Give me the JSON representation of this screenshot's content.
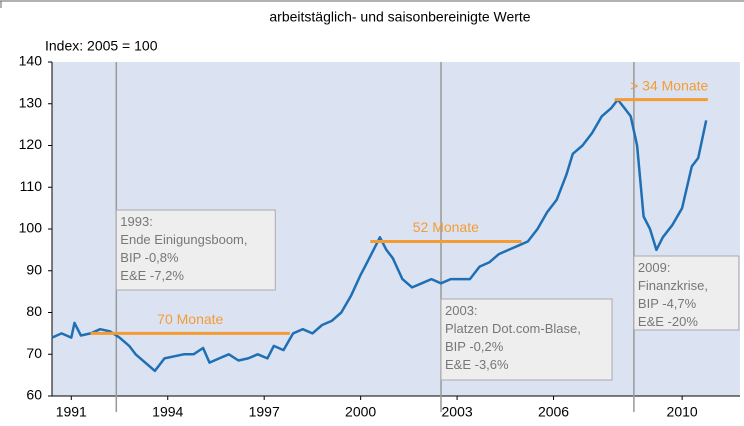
{
  "chart_data": {
    "type": "line",
    "subtitle": "arbeitstäglich- und saisonbereinigte Werte",
    "y_label": "Index: 2005 = 100",
    "xlim": [
      1990.4,
      2011.8
    ],
    "xticks": [
      1991,
      1994,
      1997,
      2000,
      2003,
      2006,
      2010
    ],
    "ylim": [
      60,
      140
    ],
    "yticks": [
      60,
      70,
      80,
      90,
      100,
      110,
      120,
      130,
      140
    ],
    "background": "#dbe3f3",
    "x": [
      1990.4,
      1990.7,
      1991.0,
      1991.1,
      1991.3,
      1991.6,
      1991.9,
      1992.2,
      1992.5,
      1992.8,
      1993.0,
      1993.3,
      1993.6,
      1993.9,
      1994.2,
      1994.5,
      1994.8,
      1995.1,
      1995.3,
      1995.6,
      1995.9,
      1996.2,
      1996.5,
      1996.8,
      1997.1,
      1997.3,
      1997.6,
      1997.9,
      1998.2,
      1998.5,
      1998.8,
      1999.1,
      1999.4,
      1999.7,
      2000.0,
      2000.2,
      2000.4,
      2000.6,
      2000.8,
      2001.0,
      2001.3,
      2001.6,
      2001.9,
      2002.2,
      2002.5,
      2002.8,
      2003.1,
      2003.4,
      2003.7,
      2004.0,
      2004.3,
      2004.6,
      2004.9,
      2005.2,
      2005.5,
      2005.8,
      2006.1,
      2006.4,
      2006.6,
      2006.9,
      2007.2,
      2007.5,
      2007.8,
      2008.0,
      2008.2,
      2008.4,
      2008.6,
      2008.8,
      2009.0,
      2009.2,
      2009.4,
      2009.7,
      2010.0,
      2010.3,
      2010.5,
      2010.75
    ],
    "series": [
      {
        "color": "#1f6fb5",
        "values": [
          74,
          75,
          74,
          77.5,
          74.5,
          75,
          76,
          75.5,
          74,
          72,
          70,
          68,
          66,
          69,
          69.5,
          70,
          70,
          71.5,
          68,
          69,
          70,
          68.5,
          69,
          70,
          69,
          72,
          71,
          75,
          76,
          75,
          77,
          78,
          80,
          84,
          89,
          92,
          95,
          98,
          95,
          93,
          88,
          86,
          87,
          88,
          87,
          88,
          88,
          88,
          91,
          92,
          94,
          95,
          96,
          97,
          100,
          104,
          107,
          113,
          118,
          120,
          123,
          127,
          129,
          131,
          129,
          127,
          120,
          103,
          100,
          95,
          98,
          101,
          105,
          115,
          117,
          126
        ]
      }
    ],
    "periods": [
      {
        "label": "70 Monate",
        "start": 1991.6,
        "end": 1997.8,
        "value": 75
      },
      {
        "label": "52 Monate",
        "start": 2000.3,
        "end": 2005.0,
        "value": 97
      },
      {
        "label": "> 34 Monate",
        "start": 2007.9,
        "end": 2010.8,
        "value": 131
      }
    ],
    "period_color": "#f39c33",
    "annotations": [
      {
        "x": 1992.4,
        "lines": [
          "1993:",
          "Ende Einigungsboom,",
          "BIP -0,8%",
          "E&E -7,2%"
        ]
      },
      {
        "x": 2002.5,
        "lines": [
          "2003:",
          "Platzen Dot.com-Blase,",
          "BIP -0,2%",
          "E&E -3,6%"
        ]
      },
      {
        "x": 2008.5,
        "lines": [
          "2009:",
          "Finanzkrise,",
          "BIP -4,7%",
          "E&E -20%"
        ]
      }
    ]
  }
}
